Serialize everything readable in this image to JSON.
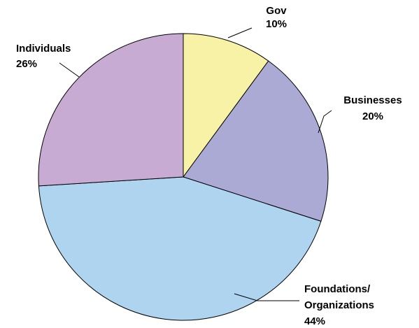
{
  "chart_data": {
    "type": "pie",
    "start_angle_deg": 0,
    "direction": "clockwise",
    "slices": [
      {
        "label": "Gov",
        "value": 10,
        "value_label": "10%",
        "color": "#f8f2a7",
        "text_lines": [
          "Gov",
          "10%"
        ]
      },
      {
        "label": "Businesses",
        "value": 20,
        "value_label": "20%",
        "color": "#aaaad4",
        "text_lines": [
          "Businesses",
          "20%"
        ]
      },
      {
        "label": "Foundations/ Organizations",
        "value": 44,
        "value_label": "44%",
        "color": "#aed4f0",
        "text_lines": [
          "Foundations/",
          "Organizations",
          "44%"
        ]
      },
      {
        "label": "Individuals",
        "value": 26,
        "value_label": "26%",
        "color": "#c8abd2",
        "text_lines": [
          "Individuals",
          "26%"
        ]
      }
    ],
    "legend": "none"
  }
}
